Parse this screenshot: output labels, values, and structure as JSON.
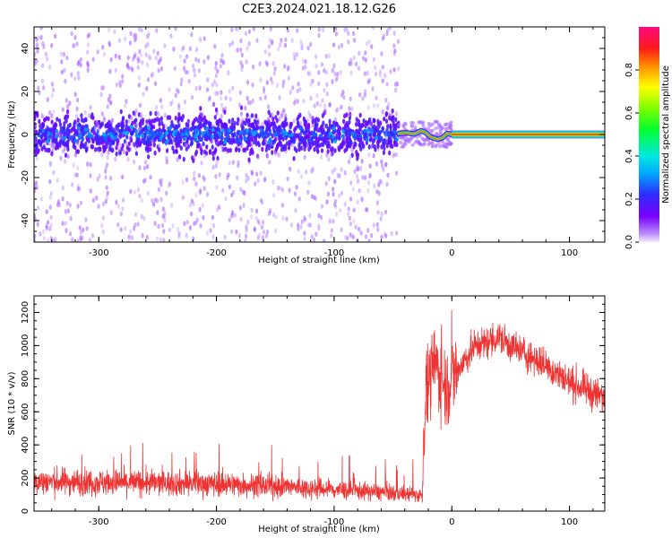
{
  "title": "C2E3.2024.021.18.12.G26",
  "chart_data": [
    {
      "type": "heatmap",
      "xlabel": "Height of straight line (km)",
      "ylabel": "Frequency (Hz)",
      "xlim": [
        -355,
        130
      ],
      "ylim": [
        -50,
        50
      ],
      "xticks": [
        -300,
        -200,
        -100,
        0,
        100
      ],
      "yticks": [
        -40,
        -20,
        0,
        20,
        40
      ],
      "colorbar": {
        "label": "Normalized spectral amplitude",
        "range": [
          0,
          1
        ],
        "ticks": [
          0.0,
          0.2,
          0.4,
          0.6,
          0.8
        ],
        "colormap": "rainbow (light violet to magenta)"
      },
      "regions": [
        {
          "x_range": [
            -355,
            -45
          ],
          "frequency_spread_hz": [
            -50,
            50
          ],
          "core_band_hz": [
            -10,
            10
          ],
          "peak_amplitude": 0.3
        },
        {
          "x_range": [
            -45,
            0
          ],
          "frequency_offset_hz": [
            -3,
            2
          ],
          "peak_amplitude": 0.85
        },
        {
          "x_range": [
            0,
            130
          ],
          "frequency_offset_hz": 0,
          "peak_amplitude": 0.9
        }
      ]
    },
    {
      "type": "line",
      "xlabel": "Height of straight line (km)",
      "ylabel": "SNR (10 * v/v)",
      "xlim": [
        -355,
        130
      ],
      "ylim": [
        0,
        1300
      ],
      "xticks": [
        -300,
        -200,
        -100,
        0,
        100
      ],
      "yticks": [
        0,
        200,
        400,
        600,
        800,
        1000,
        1200
      ],
      "series": [
        {
          "color": "#ee3333",
          "x": [
            -355,
            -300,
            -250,
            -200,
            -150,
            -100,
            -50,
            -25,
            -23,
            -15,
            -5,
            0,
            10,
            20,
            30,
            40,
            50,
            60,
            80,
            100,
            130
          ],
          "y": [
            180,
            175,
            170,
            165,
            150,
            130,
            110,
            95,
            650,
            900,
            750,
            800,
            900,
            1000,
            1020,
            1050,
            1000,
            960,
            880,
            780,
            680
          ]
        }
      ]
    }
  ],
  "colors": {
    "snr_line": "#ee3333"
  }
}
